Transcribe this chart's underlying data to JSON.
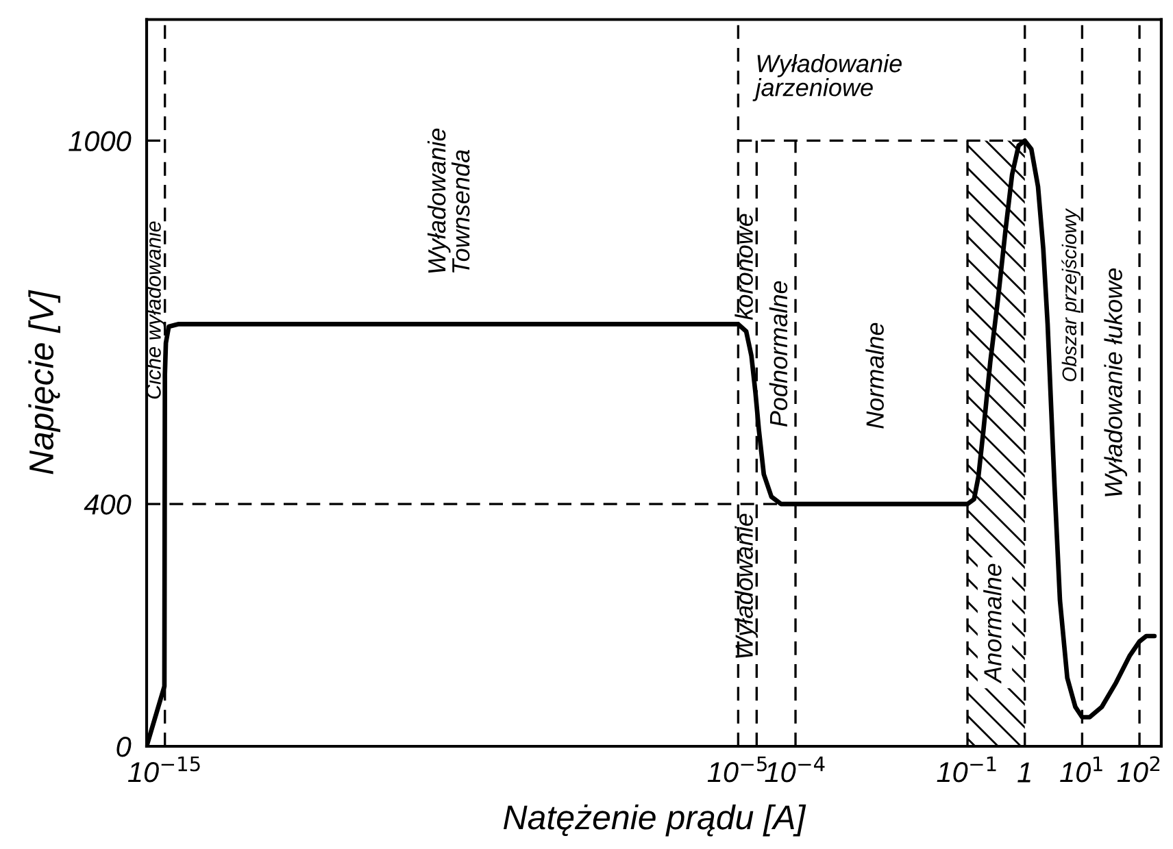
{
  "chart_data": {
    "type": "line",
    "log": "x",
    "ylabel": "Napięcie [V]",
    "xlabel": "Natężenie prądu [A]",
    "xlim": [
      4.8e-16,
      240
    ],
    "ylim": [
      0,
      1200
    ],
    "xticks": [
      {
        "value": 1e-15,
        "label": "10$^{−15}$"
      },
      {
        "value": 1e-05,
        "label": "10$^{−5}$"
      },
      {
        "value": 0.0001,
        "label": "10$^{−4}$"
      },
      {
        "value": 0.1,
        "label": "10$^{−1}$"
      },
      1,
      {
        "value": 10,
        "label": "10$^{1}$"
      },
      {
        "value": 100,
        "label": "10$^{2}$"
      }
    ],
    "yticks": [
      0,
      400,
      1000
    ],
    "series": [
      {
        "type": "area",
        "color": "#000000",
        "x": [
          0.1,
          1
        ],
        "values": [
          1000,
          1000
        ]
      },
      {
        "type": "line",
        "color": "#000000",
        "line_style": "dashed",
        "x": [
          4.8e-16,
          5.6e-05
        ],
        "values": [
          400,
          400
        ]
      },
      {
        "type": "line",
        "color": "#000000",
        "line_style": "dashed",
        "x": [
          4.8e-16,
          1e-15
        ],
        "values": [
          1000,
          1000
        ]
      },
      {
        "type": "line",
        "color": "#000000",
        "line_style": "dashed",
        "x": [
          1e-05,
          1
        ],
        "values": [
          1000,
          1000
        ]
      },
      {
        "type": "line",
        "color": "#000000",
        "line_style": "dashed",
        "x": [
          2.1e-05,
          2.1e-05
        ],
        "values": [
          0,
          1000
        ]
      },
      {
        "type": "line",
        "color": "#000000",
        "line_style": "dashed",
        "x": [
          0.0001,
          0.0001
        ],
        "values": [
          0,
          1000
        ]
      },
      {
        "type": "line",
        "color": "#000000",
        "line_style": "dashed",
        "x": [
          0.1,
          0.1
        ],
        "values": [
          0,
          1000
        ]
      },
      {
        "color": "#000000",
        "line_style": "solid",
        "x": [
          4.8e-16,
          9.8e-16,
          1e-15,
          1.04e-15,
          1.17e-15,
          1.7e-15,
          1e-05,
          1.38e-05,
          1.7e-05,
          2e-05,
          2.3e-05,
          2.8e-05,
          3.8e-05,
          5.6e-05,
          0.1,
          0.13,
          0.155,
          0.19,
          0.25,
          0.34,
          0.46,
          0.6,
          0.78,
          1,
          1.3,
          1.7,
          2.1,
          2.5,
          2.9,
          3.3,
          4.1,
          5.5,
          7.6,
          10,
          13.5,
          22,
          39,
          68,
          100,
          132,
          182
        ],
        "values": [
          0,
          99,
          614,
          666,
          693,
          697,
          697,
          685,
          645,
          584,
          522,
          449,
          412,
          400,
          400,
          408,
          445,
          522,
          635,
          738,
          852,
          944,
          992,
          1000,
          986,
          924,
          821,
          697,
          553,
          429,
          241,
          113,
          65,
          48,
          48,
          65,
          105,
          150,
          173,
          182,
          182
        ]
      }
    ],
    "ref_lines": [
      {
        "axis": "x",
        "value": 1e-15,
        "line_style": "dashed"
      },
      {
        "axis": "x",
        "value": 1e-05,
        "line_style": "dashed"
      },
      {
        "axis": "x",
        "value": 1,
        "line_style": "dashed"
      },
      {
        "axis": "x",
        "value": 10,
        "line_style": "dashed"
      },
      {
        "axis": "x",
        "value": 100,
        "line_style": "dashed"
      }
    ],
    "annotations": [
      "Ciche wyładowanie",
      "Wyładowanie\nTownsenda",
      "Wyładowanie\njarzeniowe",
      "koronowe",
      "Wyładowanie",
      "Podnormalne",
      "Normalne",
      "Anormalne",
      "Obszar przejściowy",
      "Wyładowanie łukowe"
    ]
  }
}
